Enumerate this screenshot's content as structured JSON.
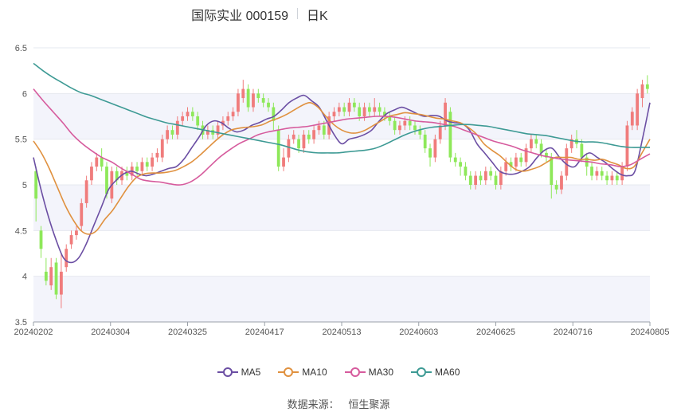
{
  "header": {
    "stock_name": "国际实业 000159",
    "period": "日K"
  },
  "footer": {
    "source_label": "数据来源：",
    "source_name": "恒生聚源"
  },
  "colors": {
    "up": "#f07c7c",
    "down": "#8ee85a",
    "MA5": "#6b4ea3",
    "MA10": "#e0913f",
    "MA30": "#d65b9d",
    "MA60": "#3d9a94",
    "band": "#f3f4fb",
    "grid": "#e6e8ef"
  },
  "chart_data": {
    "type": "candlestick",
    "y_ticks": [
      "3.5",
      "4",
      "4.5",
      "5",
      "5.5",
      "6",
      "6.5"
    ],
    "ylim": [
      3.5,
      6.5
    ],
    "x_ticks": [
      "20240202",
      "20240304",
      "20240325",
      "20240417",
      "20240513",
      "20240603",
      "20240625",
      "20240716",
      "20240805"
    ],
    "legend": [
      "MA5",
      "MA10",
      "MA30",
      "MA60"
    ],
    "legend_position": "bottom",
    "candles": [
      [
        5.15,
        4.85,
        5.2,
        4.6
      ],
      [
        4.5,
        4.3,
        4.55,
        4.2
      ],
      [
        4.05,
        3.95,
        4.2,
        3.9
      ],
      [
        3.9,
        4.1,
        4.2,
        3.85
      ],
      [
        4.15,
        3.8,
        4.2,
        3.75
      ],
      [
        3.8,
        4.05,
        4.25,
        3.65
      ],
      [
        4.1,
        4.3,
        4.35,
        4.05
      ],
      [
        4.35,
        4.45,
        4.5,
        4.3
      ],
      [
        4.45,
        4.5,
        4.55,
        4.4
      ],
      [
        4.55,
        4.8,
        4.85,
        4.5
      ],
      [
        4.8,
        5.05,
        5.1,
        4.75
      ],
      [
        5.05,
        5.2,
        5.25,
        5.0
      ],
      [
        5.2,
        5.3,
        5.35,
        5.15
      ],
      [
        5.3,
        5.2,
        5.4,
        5.15
      ],
      [
        5.2,
        4.9,
        5.25,
        4.85
      ],
      [
        4.85,
        5.15,
        5.2,
        4.8
      ],
      [
        5.15,
        5.05,
        5.2,
        5.0
      ],
      [
        5.05,
        5.15,
        5.2,
        5.0
      ],
      [
        5.15,
        5.1,
        5.2,
        5.05
      ],
      [
        5.1,
        5.2,
        5.25,
        5.05
      ],
      [
        5.2,
        5.15,
        5.25,
        5.1
      ],
      [
        5.15,
        5.25,
        5.3,
        5.1
      ],
      [
        5.25,
        5.2,
        5.3,
        5.15
      ],
      [
        5.2,
        5.3,
        5.35,
        5.15
      ],
      [
        5.3,
        5.35,
        5.4,
        5.25
      ],
      [
        5.3,
        5.5,
        5.55,
        5.25
      ],
      [
        5.5,
        5.6,
        5.65,
        5.45
      ],
      [
        5.6,
        5.55,
        5.65,
        5.5
      ],
      [
        5.55,
        5.7,
        5.75,
        5.5
      ],
      [
        5.7,
        5.75,
        5.8,
        5.65
      ],
      [
        5.75,
        5.8,
        5.85,
        5.7
      ],
      [
        5.8,
        5.75,
        5.85,
        5.7
      ],
      [
        5.75,
        5.65,
        5.8,
        5.6
      ],
      [
        5.65,
        5.55,
        5.7,
        5.5
      ],
      [
        5.55,
        5.6,
        5.65,
        5.5
      ],
      [
        5.6,
        5.55,
        5.65,
        5.5
      ],
      [
        5.55,
        5.65,
        5.7,
        5.5
      ],
      [
        5.65,
        5.7,
        5.75,
        5.6
      ],
      [
        5.7,
        5.75,
        5.8,
        5.65
      ],
      [
        5.75,
        5.8,
        5.85,
        5.7
      ],
      [
        5.8,
        6.0,
        6.05,
        5.75
      ],
      [
        5.95,
        6.05,
        6.15,
        5.9
      ],
      [
        6.05,
        5.85,
        6.1,
        5.8
      ],
      [
        5.85,
        6.0,
        6.05,
        5.8
      ],
      [
        6.0,
        5.95,
        6.05,
        5.9
      ],
      [
        5.95,
        5.9,
        6.0,
        5.85
      ],
      [
        5.9,
        5.85,
        5.95,
        5.8
      ],
      [
        5.85,
        5.7,
        5.9,
        5.6
      ],
      [
        5.6,
        5.2,
        5.65,
        5.15
      ],
      [
        5.2,
        5.3,
        5.4,
        5.15
      ],
      [
        5.3,
        5.5,
        5.55,
        5.25
      ],
      [
        5.5,
        5.55,
        5.6,
        5.45
      ],
      [
        5.5,
        5.4,
        5.55,
        5.35
      ],
      [
        5.4,
        5.55,
        5.6,
        5.35
      ],
      [
        5.55,
        5.5,
        5.6,
        5.45
      ],
      [
        5.5,
        5.6,
        5.65,
        5.45
      ],
      [
        5.6,
        5.65,
        5.7,
        5.55
      ],
      [
        5.65,
        5.55,
        5.7,
        5.5
      ],
      [
        5.55,
        5.75,
        5.8,
        5.5
      ],
      [
        5.75,
        5.8,
        5.85,
        5.7
      ],
      [
        5.8,
        5.85,
        5.9,
        5.75
      ],
      [
        5.85,
        5.8,
        5.9,
        5.75
      ],
      [
        5.8,
        5.9,
        5.95,
        5.75
      ],
      [
        5.9,
        5.85,
        5.95,
        5.8
      ],
      [
        5.85,
        5.75,
        5.9,
        5.7
      ],
      [
        5.75,
        5.85,
        5.9,
        5.7
      ],
      [
        5.85,
        5.8,
        5.9,
        5.75
      ],
      [
        5.8,
        5.85,
        5.95,
        5.75
      ],
      [
        5.85,
        5.8,
        5.9,
        5.75
      ],
      [
        5.8,
        5.75,
        5.85,
        5.7
      ],
      [
        5.75,
        5.7,
        5.8,
        5.65
      ],
      [
        5.7,
        5.6,
        5.75,
        5.55
      ],
      [
        5.6,
        5.65,
        5.7,
        5.55
      ],
      [
        5.65,
        5.7,
        5.75,
        5.6
      ],
      [
        5.7,
        5.65,
        5.75,
        5.6
      ],
      [
        5.65,
        5.6,
        5.7,
        5.55
      ],
      [
        5.6,
        5.55,
        5.65,
        5.5
      ],
      [
        5.55,
        5.4,
        5.6,
        5.35
      ],
      [
        5.4,
        5.3,
        5.45,
        5.2
      ],
      [
        5.3,
        5.5,
        5.55,
        5.25
      ],
      [
        5.5,
        5.65,
        5.7,
        5.45
      ],
      [
        5.65,
        5.9,
        5.95,
        5.6
      ],
      [
        5.8,
        5.3,
        5.85,
        5.25
      ],
      [
        5.3,
        5.25,
        5.35,
        5.2
      ],
      [
        5.25,
        5.2,
        5.3,
        5.1
      ],
      [
        5.2,
        5.1,
        5.25,
        5.05
      ],
      [
        5.1,
        5.0,
        5.15,
        4.95
      ],
      [
        5.0,
        5.1,
        5.15,
        4.95
      ],
      [
        5.1,
        5.05,
        5.15,
        5.0
      ],
      [
        5.05,
        5.15,
        5.2,
        5.0
      ],
      [
        5.15,
        5.1,
        5.2,
        5.05
      ],
      [
        5.1,
        5.0,
        5.15,
        4.95
      ],
      [
        5.0,
        5.15,
        5.2,
        4.95
      ],
      [
        5.15,
        5.25,
        5.3,
        5.1
      ],
      [
        5.25,
        5.2,
        5.3,
        5.15
      ],
      [
        5.2,
        5.3,
        5.35,
        5.15
      ],
      [
        5.3,
        5.25,
        5.35,
        5.2
      ],
      [
        5.25,
        5.4,
        5.45,
        5.2
      ],
      [
        5.4,
        5.5,
        5.55,
        5.35
      ],
      [
        5.5,
        5.45,
        5.55,
        5.4
      ],
      [
        5.45,
        5.35,
        5.5,
        5.3
      ],
      [
        5.35,
        5.3,
        5.4,
        5.25
      ],
      [
        5.3,
        5.0,
        5.35,
        4.85
      ],
      [
        5.0,
        4.95,
        5.05,
        4.9
      ],
      [
        4.95,
        5.1,
        5.15,
        4.9
      ],
      [
        5.1,
        5.4,
        5.45,
        5.05
      ],
      [
        5.4,
        5.5,
        5.55,
        5.35
      ],
      [
        5.5,
        5.45,
        5.6,
        5.4
      ],
      [
        5.45,
        5.3,
        5.5,
        5.25
      ],
      [
        5.3,
        5.2,
        5.35,
        5.1
      ],
      [
        5.2,
        5.1,
        5.25,
        5.05
      ],
      [
        5.1,
        5.15,
        5.2,
        5.05
      ],
      [
        5.15,
        5.1,
        5.2,
        5.05
      ],
      [
        5.1,
        5.05,
        5.15,
        5.0
      ],
      [
        5.05,
        5.1,
        5.15,
        5.0
      ],
      [
        5.1,
        5.05,
        5.15,
        5.0
      ],
      [
        5.05,
        5.2,
        5.25,
        5.0
      ],
      [
        5.2,
        5.65,
        5.7,
        5.15
      ],
      [
        5.65,
        5.8,
        5.85,
        5.6
      ],
      [
        5.65,
        6.0,
        6.05,
        5.6
      ],
      [
        5.95,
        6.1,
        6.15,
        5.85
      ],
      [
        6.1,
        6.05,
        6.2,
        6.0
      ]
    ],
    "series": [
      {
        "name": "MA5",
        "values": [
          5.3,
          4.95,
          4.65,
          4.4,
          4.2,
          4.15,
          4.2,
          4.35,
          4.55,
          4.75,
          4.95,
          5.05,
          5.12,
          5.15,
          5.12,
          5.1,
          5.12,
          5.15,
          5.18,
          5.2,
          5.28,
          5.4,
          5.52,
          5.65,
          5.7,
          5.68,
          5.62,
          5.58,
          5.6,
          5.65,
          5.68,
          5.72,
          5.75,
          5.82,
          5.9,
          5.95,
          5.98,
          5.92,
          5.85,
          5.7,
          5.55,
          5.45,
          5.5,
          5.52,
          5.55,
          5.6,
          5.7,
          5.78,
          5.82,
          5.85,
          5.82,
          5.78,
          5.75,
          5.76,
          5.75,
          5.7,
          5.68,
          5.67,
          5.6,
          5.45,
          5.35,
          5.25,
          5.15,
          5.12,
          5.12,
          5.15,
          5.2,
          5.3,
          5.38,
          5.4,
          5.3,
          5.22,
          5.2,
          5.3,
          5.35,
          5.3,
          5.25,
          5.18,
          5.12,
          5.1,
          5.15,
          5.5,
          5.9
        ]
      },
      {
        "name": "MA10",
        "values": [
          5.48,
          5.35,
          5.18,
          4.98,
          4.78,
          4.62,
          4.5,
          4.46,
          4.5,
          4.62,
          4.72,
          4.85,
          4.98,
          5.08,
          5.12,
          5.13,
          5.13,
          5.14,
          5.16,
          5.2,
          5.25,
          5.32,
          5.4,
          5.48,
          5.55,
          5.6,
          5.62,
          5.63,
          5.64,
          5.66,
          5.7,
          5.73,
          5.77,
          5.82,
          5.87,
          5.9,
          5.85,
          5.75,
          5.66,
          5.6,
          5.57,
          5.57,
          5.6,
          5.65,
          5.7,
          5.75,
          5.77,
          5.79,
          5.78,
          5.77,
          5.75,
          5.73,
          5.72,
          5.7,
          5.68,
          5.63,
          5.56,
          5.45,
          5.38,
          5.32,
          5.24,
          5.17,
          5.15,
          5.17,
          5.2,
          5.25,
          5.3,
          5.3,
          5.3,
          5.28,
          5.28,
          5.27,
          5.28,
          5.25,
          5.22,
          5.18,
          5.2,
          5.35,
          5.5
        ]
      },
      {
        "name": "MA30",
        "values": [
          6.05,
          5.92,
          5.8,
          5.68,
          5.55,
          5.45,
          5.37,
          5.3,
          5.25,
          5.18,
          5.12,
          5.06,
          5.04,
          5.03,
          5.01,
          5.0,
          5.03,
          5.1,
          5.2,
          5.3,
          5.38,
          5.45,
          5.5,
          5.55,
          5.58,
          5.6,
          5.62,
          5.63,
          5.64,
          5.66,
          5.68,
          5.7,
          5.72,
          5.73,
          5.74,
          5.75,
          5.75,
          5.74,
          5.72,
          5.7,
          5.69,
          5.68,
          5.66,
          5.64,
          5.6,
          5.56,
          5.52,
          5.48,
          5.45,
          5.42,
          5.38,
          5.35,
          5.32,
          5.3,
          5.28,
          5.27,
          5.26,
          5.25,
          5.23,
          5.22,
          5.2,
          5.22,
          5.28,
          5.34
        ]
      },
      {
        "name": "MA60",
        "values": [
          6.33,
          6.25,
          6.18,
          6.12,
          6.06,
          6.01,
          5.98,
          5.94,
          5.9,
          5.86,
          5.82,
          5.78,
          5.74,
          5.71,
          5.68,
          5.66,
          5.64,
          5.62,
          5.6,
          5.58,
          5.56,
          5.54,
          5.52,
          5.5,
          5.48,
          5.46,
          5.44,
          5.41,
          5.38,
          5.36,
          5.35,
          5.35,
          5.35,
          5.36,
          5.37,
          5.38,
          5.4,
          5.44,
          5.49,
          5.54,
          5.58,
          5.61,
          5.63,
          5.64,
          5.65,
          5.66,
          5.66,
          5.65,
          5.64,
          5.62,
          5.6,
          5.58,
          5.56,
          5.55,
          5.54,
          5.52,
          5.5,
          5.48,
          5.47,
          5.47,
          5.46,
          5.44,
          5.42,
          5.41,
          5.41,
          5.41
        ]
      }
    ]
  }
}
